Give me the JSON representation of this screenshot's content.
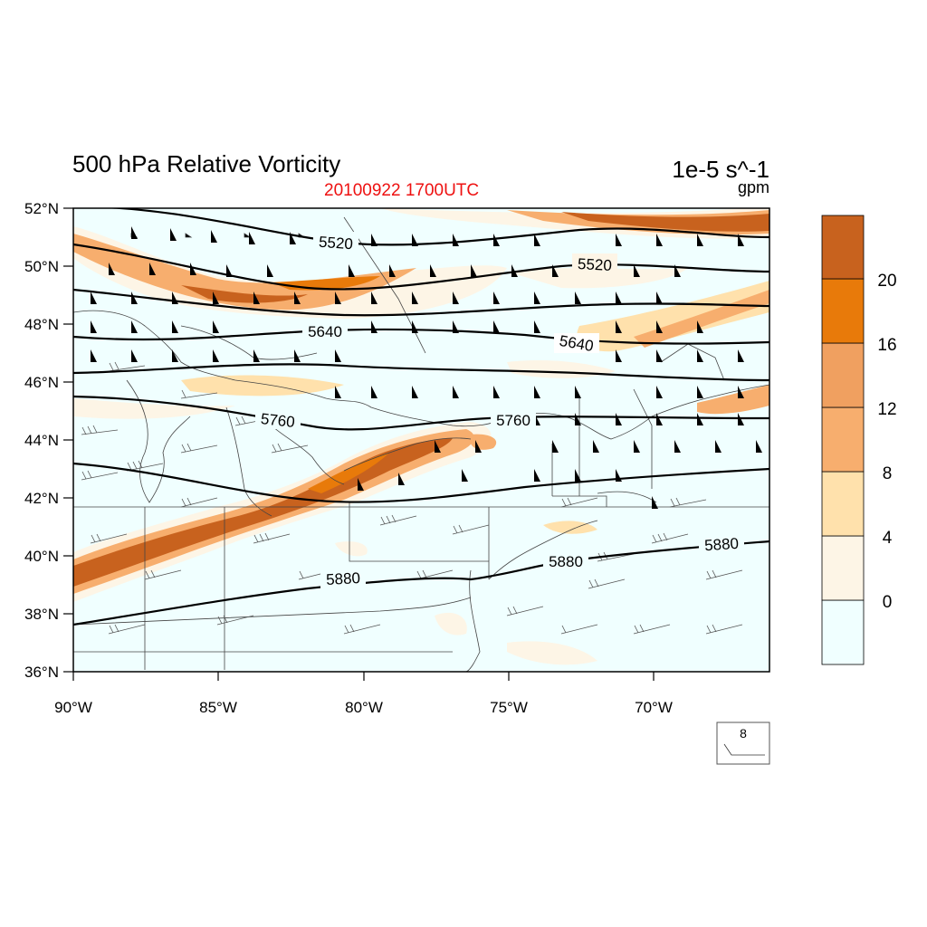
{
  "title": "500 hPa Relative Vorticity",
  "subtitle": "20100922 1700UTC",
  "units": "1e-5 s^-1",
  "contour_units": "gpm",
  "colorbar": {
    "labels": [
      "0",
      "4",
      "8",
      "12",
      "16",
      "20"
    ],
    "colors": [
      "#f0ffff",
      "#fdf5e6",
      "#ffe1ac",
      "#f7ae6e",
      "#f0a060",
      "#e87a0a",
      "#c8621e"
    ]
  },
  "map": {
    "lon_range": [
      -90,
      -66
    ],
    "lat_range": [
      36,
      52
    ],
    "lat_ticks": [
      "36°N",
      "38°N",
      "40°N",
      "42°N",
      "44°N",
      "46°N",
      "48°N",
      "50°N",
      "52°N"
    ],
    "lon_ticks": [
      "90°W",
      "85°W",
      "80°W",
      "75°W",
      "70°W"
    ],
    "contour_labels": [
      "5520",
      "5520",
      "5640",
      "5640",
      "5760",
      "5760",
      "5880",
      "5880"
    ]
  },
  "wind_reference": "8"
}
